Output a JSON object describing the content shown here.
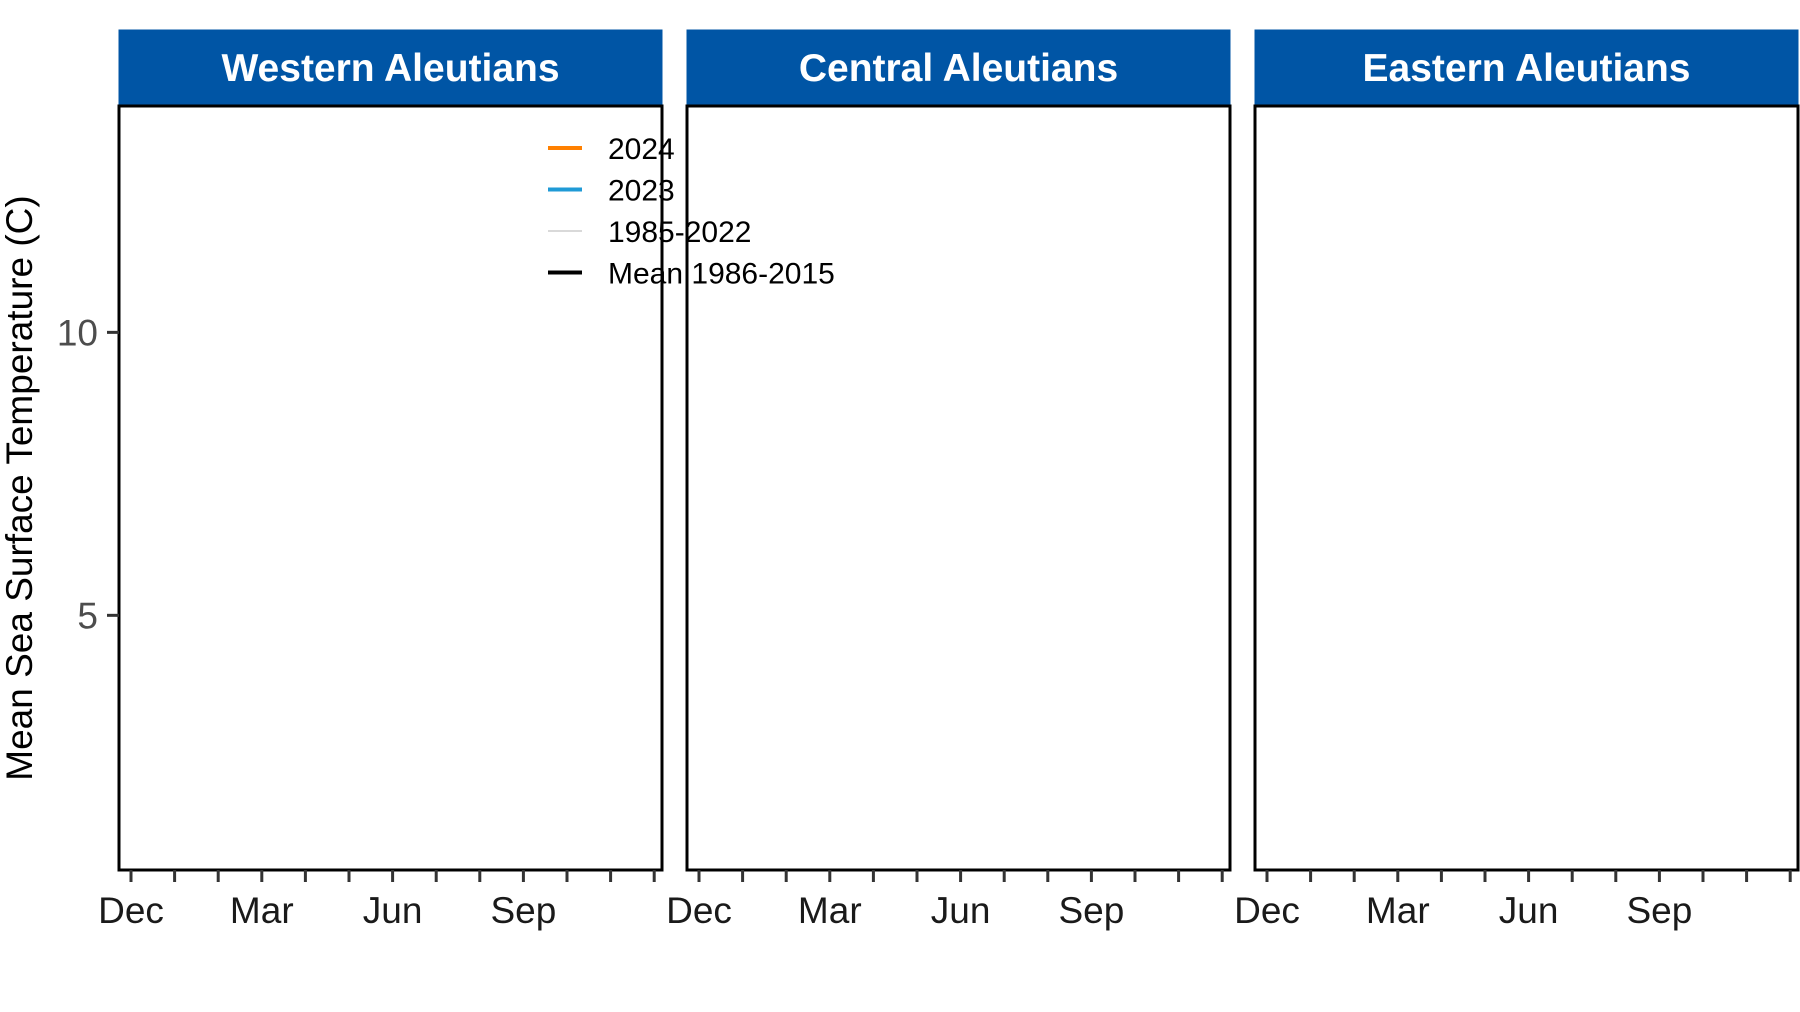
{
  "chart_data": {
    "type": "line",
    "ylabel": "Mean Sea Surface Temperature (C)",
    "xlabel": "",
    "ylim": [
      0.5,
      14
    ],
    "yticks": [
      5,
      10
    ],
    "x_tick_labels": [
      "Dec",
      "Mar",
      "Jun",
      "Sep"
    ],
    "panels": [
      {
        "title": "Western Aleutians"
      },
      {
        "title": "Central Aleutians"
      },
      {
        "title": "Eastern Aleutians"
      }
    ],
    "legend": {
      "placement": "top-right of first panel",
      "entries": [
        {
          "label": "2024",
          "color": "#ff8000"
        },
        {
          "label": "2023",
          "color": "#1f9ad6"
        },
        {
          "label": "1985-2022",
          "color": "#d9d9d9"
        },
        {
          "label": "Mean 1986-2015",
          "color": "#000000"
        }
      ]
    },
    "series": [],
    "strip_color": "#0055a5",
    "grid": false
  }
}
